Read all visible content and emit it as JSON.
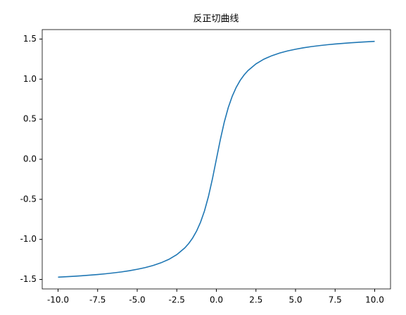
{
  "chart_data": {
    "type": "line",
    "title": "反正切曲线",
    "x": [
      -10,
      -9.5,
      -9,
      -8.5,
      -8,
      -7.5,
      -7,
      -6.5,
      -6,
      -5.5,
      -5,
      -4.5,
      -4,
      -3.5,
      -3,
      -2.5,
      -2,
      -1.75,
      -1.5,
      -1.25,
      -1,
      -0.75,
      -0.5,
      -0.25,
      0,
      0.25,
      0.5,
      0.75,
      1,
      1.25,
      1.5,
      1.75,
      2,
      2.5,
      3,
      3.5,
      4,
      4.5,
      5,
      5.5,
      6,
      6.5,
      7,
      7.5,
      8,
      8.5,
      9,
      9.5,
      10
    ],
    "series": [
      {
        "color": "#1f77b4",
        "values": [
          -1.471,
          -1.466,
          -1.46,
          -1.454,
          -1.446,
          -1.438,
          -1.429,
          -1.418,
          -1.406,
          -1.391,
          -1.373,
          -1.352,
          -1.326,
          -1.292,
          -1.249,
          -1.19,
          -1.107,
          -1.052,
          -0.983,
          -0.896,
          -0.785,
          -0.644,
          -0.464,
          -0.245,
          0,
          0.245,
          0.464,
          0.644,
          0.785,
          0.896,
          0.983,
          1.052,
          1.107,
          1.19,
          1.249,
          1.292,
          1.326,
          1.352,
          1.373,
          1.391,
          1.406,
          1.418,
          1.429,
          1.438,
          1.446,
          1.454,
          1.46,
          1.466,
          1.471
        ]
      }
    ],
    "xlim": [
      -11,
      11
    ],
    "xticks": [
      {
        "value": -10,
        "label": "-10.0"
      },
      {
        "value": -7.5,
        "label": "-7.5"
      },
      {
        "value": -5,
        "label": "-5.0"
      },
      {
        "value": -2.5,
        "label": "-2.5"
      },
      {
        "value": 0,
        "label": "0.0"
      },
      {
        "value": 2.5,
        "label": "2.5"
      },
      {
        "value": 5,
        "label": "5.0"
      },
      {
        "value": 7.5,
        "label": "7.5"
      },
      {
        "value": 10,
        "label": "10.0"
      }
    ],
    "ylim": [
      -1.618,
      1.618
    ],
    "yticks": [
      -1.5,
      {
        "value": -1,
        "label": "-1.0"
      },
      -0.5,
      {
        "value": 0,
        "label": "0.0"
      },
      0.5,
      {
        "value": 1,
        "label": "1.0"
      },
      1.5
    ],
    "grid": false
  }
}
